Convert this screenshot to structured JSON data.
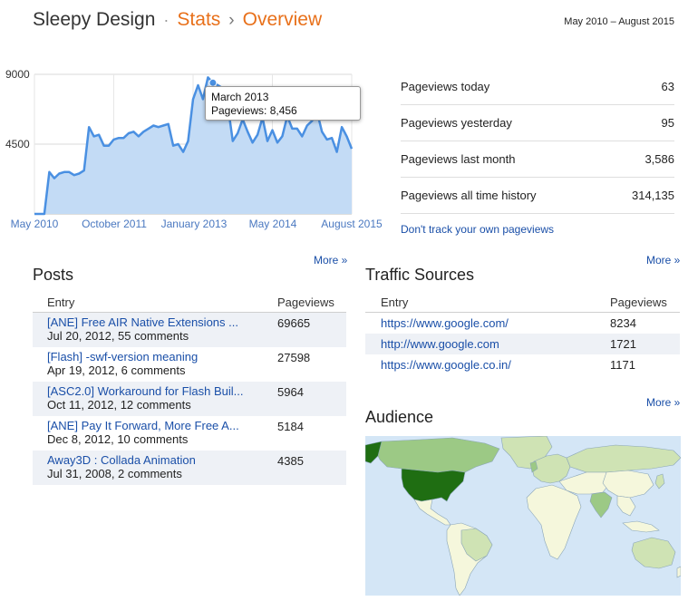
{
  "header": {
    "app_name": "Sleepy Design",
    "separator": "·",
    "section": "Stats",
    "arrow": "›",
    "page": "Overview",
    "date_range": "May 2010 – August 2015"
  },
  "chart_data": {
    "type": "area",
    "y_ticks": [
      "9000",
      "4500"
    ],
    "x_ticks": [
      "May 2010",
      "October 2011",
      "January 2013",
      "May 2014",
      "August 2015"
    ],
    "ylim": [
      0,
      9000
    ],
    "grid": true,
    "values": [
      0,
      0,
      0,
      2700,
      2300,
      2600,
      2700,
      2700,
      2500,
      2600,
      2800,
      5600,
      5000,
      5100,
      4400,
      4400,
      4800,
      4900,
      4900,
      5200,
      5300,
      5000,
      5300,
      5500,
      5700,
      5600,
      5700,
      5800,
      4400,
      4500,
      4000,
      4700,
      7400,
      8300,
      7400,
      8800,
      8456,
      8300,
      8100,
      7000,
      4700,
      5200,
      6100,
      5300,
      4600,
      5100,
      6200,
      4700,
      5400,
      4600,
      5000,
      6300,
      5500,
      5500,
      5000,
      5700,
      6000,
      6600,
      5300,
      4800,
      4900,
      4000,
      5600,
      5000,
      4200
    ],
    "highlight_index": 36,
    "tooltip": {
      "label": "March 2013",
      "value_text": "Pageviews: 8,456"
    }
  },
  "stats": {
    "rows": [
      {
        "label": "Pageviews today",
        "value": "63"
      },
      {
        "label": "Pageviews yesterday",
        "value": "95"
      },
      {
        "label": "Pageviews last month",
        "value": "3,586"
      },
      {
        "label": "Pageviews all time history",
        "value": "314,135"
      }
    ],
    "dont_track_link": "Don't track your own pageviews"
  },
  "posts": {
    "title": "Posts",
    "more": "More »",
    "col_entry": "Entry",
    "col_pageviews": "Pageviews",
    "rows": [
      {
        "title": "[ANE] Free AIR Native Extensions ...",
        "meta": "Jul 20, 2012, 55 comments",
        "pageviews": "69665"
      },
      {
        "title": "[Flash] -swf-version meaning",
        "meta": "Apr 19, 2012, 6 comments",
        "pageviews": "27598"
      },
      {
        "title": "[ASC2.0] Workaround for Flash Buil...",
        "meta": "Oct 11, 2012, 12 comments",
        "pageviews": "5964"
      },
      {
        "title": "[ANE] Pay It Forward, More Free A...",
        "meta": "Dec 8, 2012, 10 comments",
        "pageviews": "5184"
      },
      {
        "title": "Away3D : Collada Animation",
        "meta": "Jul 31, 2008, 2 comments",
        "pageviews": "4385"
      }
    ]
  },
  "traffic": {
    "title": "Traffic Sources",
    "more": "More »",
    "col_entry": "Entry",
    "col_pageviews": "Pageviews",
    "rows": [
      {
        "entry": "https://www.google.com/",
        "pageviews": "8234"
      },
      {
        "entry": "http://www.google.com",
        "pageviews": "1721"
      },
      {
        "entry": "https://www.google.co.in/",
        "pageviews": "1171"
      }
    ]
  },
  "audience": {
    "title": "Audience",
    "more": "More »",
    "colors": {
      "ocean": "#d4e6f6",
      "land": "#f5f7dc",
      "low": "#cfe3b4",
      "mid": "#9cc985",
      "high": "#1f6e12",
      "border": "#8aa5b8"
    }
  },
  "colors": {
    "accent": "#e8701a",
    "link": "#1a4fa8",
    "chart_line": "#4a90e2",
    "chart_fill": "#c3dbf5"
  }
}
